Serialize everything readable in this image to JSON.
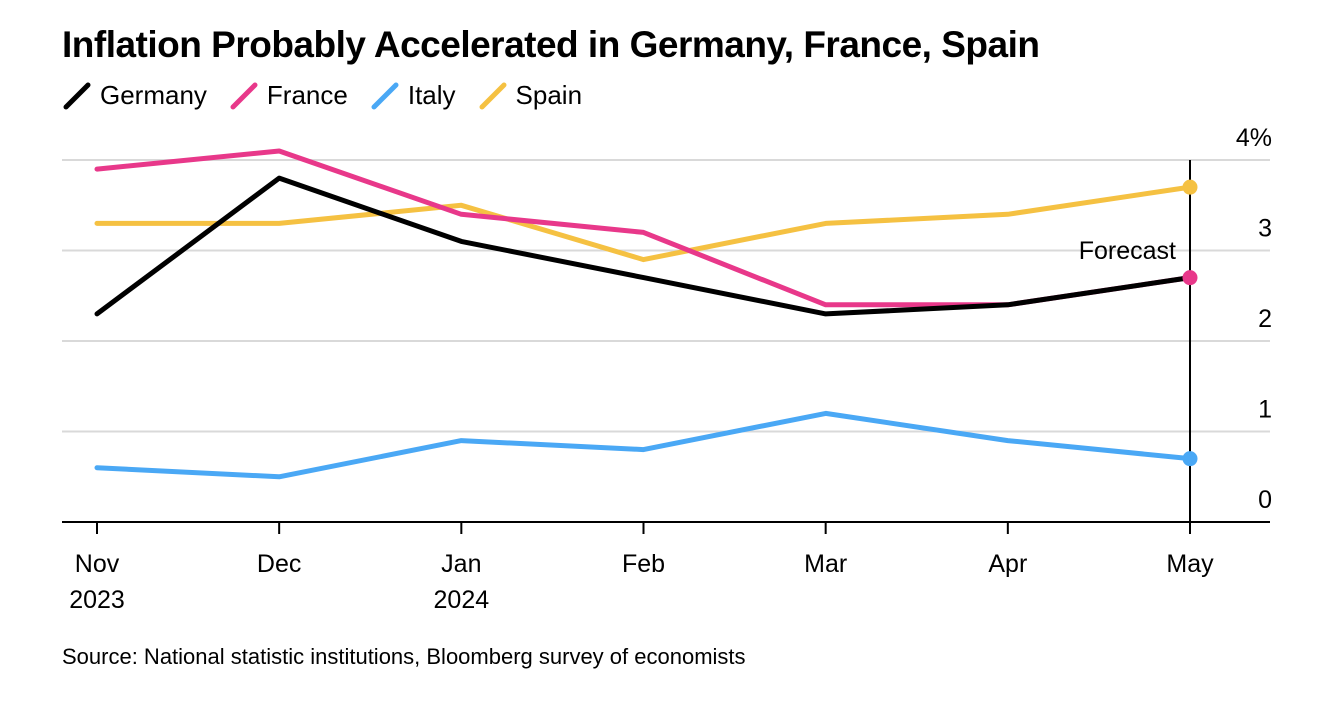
{
  "chart_data": {
    "type": "line",
    "title": "Inflation Probably Accelerated in Germany, France, Spain",
    "source": "Source: National statistic institutions, Bloomberg survey of economists",
    "categories": [
      "Nov",
      "Dec",
      "Jan",
      "Feb",
      "Mar",
      "Apr",
      "May"
    ],
    "category_sublabels": [
      "2023",
      "",
      "2024",
      "",
      "",
      "",
      ""
    ],
    "y_ticks": [
      {
        "value": 0,
        "label": "0"
      },
      {
        "value": 1,
        "label": "1"
      },
      {
        "value": 2,
        "label": "2"
      },
      {
        "value": 3,
        "label": "3"
      },
      {
        "value": 4,
        "label": "4%"
      }
    ],
    "ylim": [
      0,
      4
    ],
    "grid": true,
    "y_axis_position": "right",
    "legend_position": "top-left",
    "annotation": {
      "label": "Forecast",
      "category": "May"
    },
    "series": [
      {
        "name": "Germany",
        "color": "#000000",
        "values": [
          2.3,
          3.8,
          3.1,
          2.7,
          2.3,
          2.4,
          2.7
        ]
      },
      {
        "name": "France",
        "color": "#e8388a",
        "values": [
          3.9,
          4.1,
          3.4,
          3.2,
          2.4,
          2.4,
          2.7
        ]
      },
      {
        "name": "Italy",
        "color": "#4aa8f5",
        "values": [
          0.6,
          0.5,
          0.9,
          0.8,
          1.2,
          0.9,
          0.7
        ]
      },
      {
        "name": "Spain",
        "color": "#f5c142",
        "values": [
          3.3,
          3.3,
          3.5,
          2.9,
          3.3,
          3.4,
          3.7
        ]
      }
    ]
  }
}
